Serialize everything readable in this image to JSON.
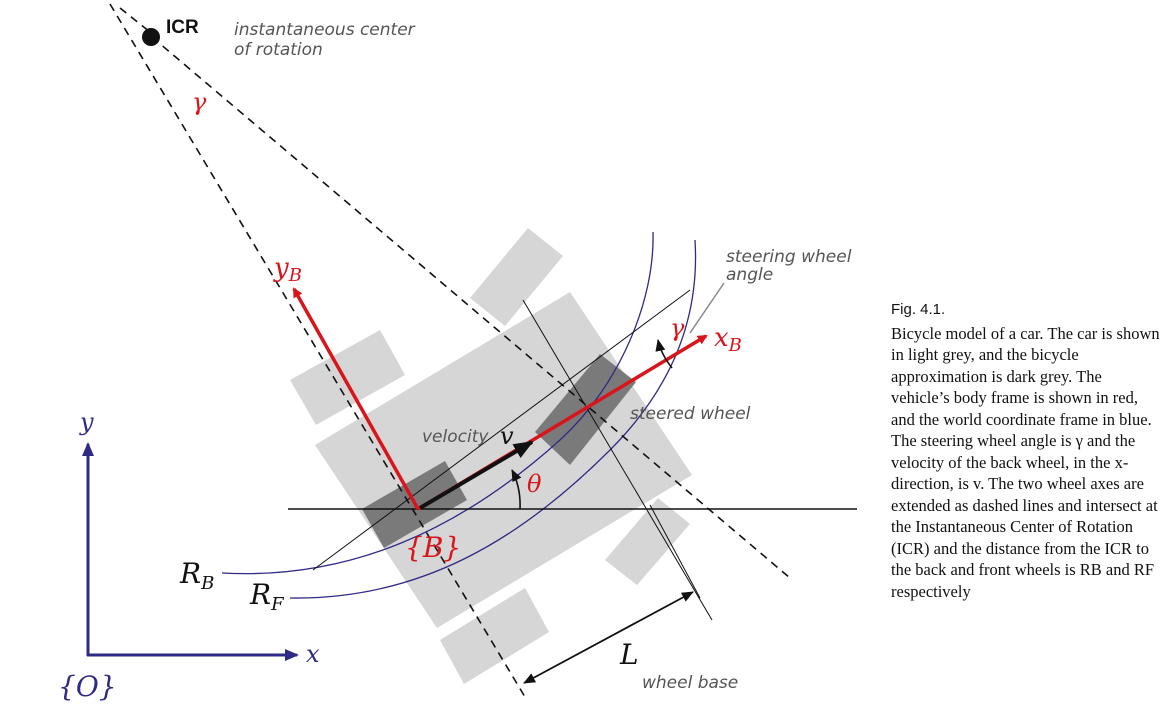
{
  "labels": {
    "icr": "ICR",
    "icr_note_line1": "instantaneous center",
    "icr_note_line2": "of rotation",
    "gamma_top": "γ",
    "y_body": "y",
    "y_body_sub": "B",
    "x_body": "x",
    "x_body_sub": "B",
    "gamma_front": "γ",
    "steering_note_line1": "steering wheel",
    "steering_note_line2": "angle",
    "steered_wheel": "steered wheel",
    "velocity_word": "velocity",
    "velocity_sym": "v",
    "theta": "θ",
    "body_frame": "{B}",
    "rb": "R",
    "rb_sub": "B",
    "rf": "R",
    "rf_sub": "F",
    "world_y": "y",
    "world_x": "x",
    "world_frame": "{O}",
    "wheelbase_sym": "L",
    "wheelbase_word": "wheel base"
  },
  "caption": {
    "figure": "Fig. 4.1.",
    "text": "Bicycle model of a car. The car is shown in light grey, and the bicycle approximation is dark grey. The vehicle’s body frame is shown in red, and the world coordinate frame in blue. The steering wheel angle is γ and the velocity of the back wheel, in the x-direction, is v. The two wheel axes are extended as dashed lines and intersect at the Instantaneous Center of Rotation (ICR) and the distance from the ICR to the back and front wheels is RB and RF respectively"
  },
  "colors": {
    "body_frame": "#d9141b",
    "world_frame": "#2e2a85",
    "car": "#d6d6d6",
    "bicycle": "#777777"
  }
}
